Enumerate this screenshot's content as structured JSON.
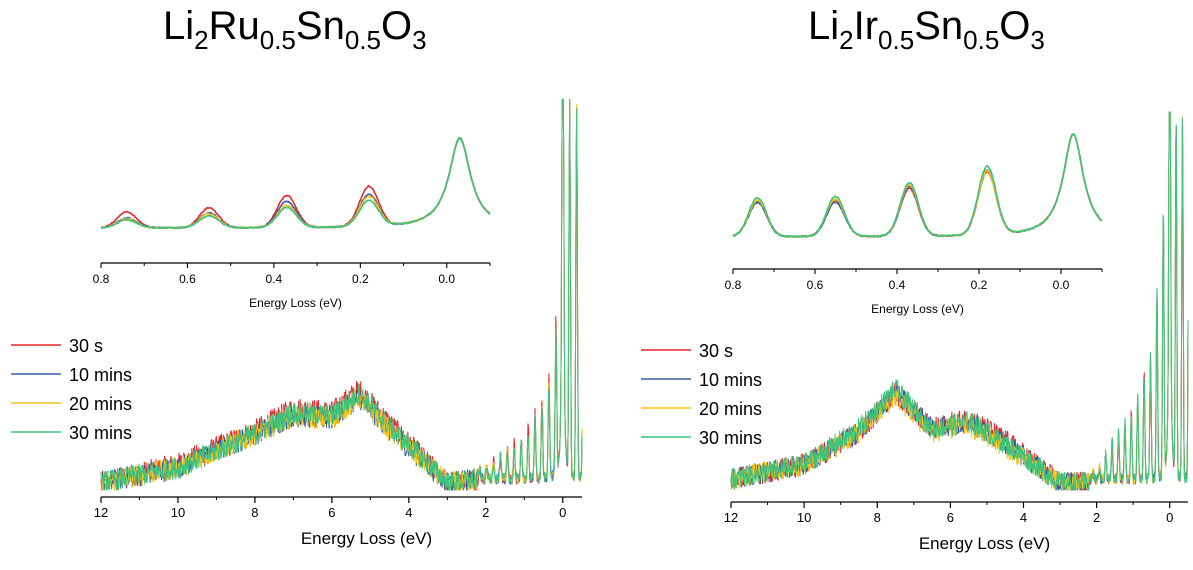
{
  "titles": {
    "left": {
      "base1": "Li",
      "s1": "2",
      "base2": "Ru",
      "s2": "0.5",
      "base3": "Sn",
      "s3": "0.5",
      "base4": "O",
      "s4": "3"
    },
    "right": {
      "base1": "Li",
      "s1": "2",
      "base2": "Ir",
      "s2": "0.5",
      "base3": "Sn",
      "s3": "0.5",
      "base4": "O",
      "s4": "3"
    }
  },
  "series_colors": {
    "30 s": "#e8262b",
    "10 mins": "#3b5ba8",
    "20 mins": "#f5c21a",
    "30 mins": "#3cc47c"
  },
  "legend_labels": [
    "30 s",
    "10 mins",
    "20 mins",
    "30 mins"
  ],
  "chart_data": [
    {
      "type": "line",
      "panel": "Li2Ru0.5Sn0.5O3 main",
      "xlabel": "Energy Loss (eV)",
      "xlim": [
        12,
        -0.5
      ],
      "x_ticks": [
        12,
        10,
        8,
        6,
        4,
        2,
        0
      ],
      "series": [
        {
          "name": "30 s",
          "x": [
            12,
            10,
            8,
            7,
            6,
            5.3,
            4.5,
            3,
            2,
            1.5,
            1,
            0.5,
            0.2,
            0
          ],
          "y": [
            0.02,
            0.07,
            0.16,
            0.22,
            0.21,
            0.27,
            0.18,
            0.02,
            0.03,
            0.08,
            0.12,
            0.22,
            0.35,
            1.0
          ]
        },
        {
          "name": "10 mins",
          "x": [
            12,
            10,
            8,
            7,
            6,
            5.3,
            4.5,
            3,
            2,
            1.5,
            1,
            0.5,
            0.2,
            0
          ],
          "y": [
            0.02,
            0.06,
            0.15,
            0.2,
            0.19,
            0.25,
            0.16,
            0.02,
            0.03,
            0.07,
            0.1,
            0.19,
            0.3,
            1.0
          ]
        },
        {
          "name": "20 mins",
          "x": [
            12,
            10,
            8,
            7,
            6,
            5.3,
            4.5,
            3,
            2,
            1.5,
            1,
            0.5,
            0.2,
            0
          ],
          "y": [
            0.02,
            0.06,
            0.15,
            0.2,
            0.19,
            0.25,
            0.16,
            0.02,
            0.03,
            0.07,
            0.1,
            0.19,
            0.3,
            1.0
          ]
        },
        {
          "name": "30 mins",
          "x": [
            12,
            10,
            8,
            7,
            6,
            5.3,
            4.5,
            3,
            2,
            1.5,
            1,
            0.5,
            0.2,
            0
          ],
          "y": [
            0.02,
            0.06,
            0.15,
            0.21,
            0.2,
            0.26,
            0.17,
            0.02,
            0.03,
            0.07,
            0.11,
            0.2,
            0.31,
            1.0
          ]
        }
      ]
    },
    {
      "type": "line",
      "panel": "Li2Ru0.5Sn0.5O3 inset",
      "xlabel": "Energy Loss (eV)",
      "xlim": [
        0.8,
        -0.1
      ],
      "x_ticks": [
        0.8,
        0.6,
        0.4,
        0.2,
        0.0
      ],
      "series": [
        {
          "name": "30 s",
          "peaks": [
            0.74,
            0.55,
            0.37,
            0.18
          ],
          "heights": [
            0.16,
            0.2,
            0.32,
            0.4
          ]
        },
        {
          "name": "10 mins",
          "peaks": [
            0.74,
            0.55,
            0.37,
            0.18
          ],
          "heights": [
            0.1,
            0.15,
            0.26,
            0.32
          ]
        },
        {
          "name": "20 mins",
          "peaks": [
            0.74,
            0.55,
            0.37,
            0.18
          ],
          "heights": [
            0.09,
            0.14,
            0.22,
            0.3
          ]
        },
        {
          "name": "30 mins",
          "peaks": [
            0.74,
            0.55,
            0.37,
            0.18
          ],
          "heights": [
            0.08,
            0.12,
            0.2,
            0.26
          ]
        }
      ]
    },
    {
      "type": "line",
      "panel": "Li2Ir0.5Sn0.5O3 main",
      "xlabel": "Energy Loss (eV)",
      "xlim": [
        12,
        -0.5
      ],
      "x_ticks": [
        12,
        10,
        8,
        6,
        4,
        2,
        0
      ],
      "series": [
        {
          "name": "30 s",
          "x": [
            12,
            10,
            8.5,
            7.5,
            6.5,
            5.5,
            4.5,
            3,
            2,
            1.5,
            1,
            0.5,
            0.2,
            0
          ],
          "y": [
            0.03,
            0.07,
            0.16,
            0.27,
            0.17,
            0.2,
            0.14,
            0.02,
            0.02,
            0.12,
            0.2,
            0.35,
            0.7,
            1.0
          ]
        },
        {
          "name": "10 mins",
          "x": [
            12,
            10,
            8.5,
            7.5,
            6.5,
            5.5,
            4.5,
            3,
            2,
            1.5,
            1,
            0.5,
            0.2,
            0
          ],
          "y": [
            0.03,
            0.07,
            0.16,
            0.27,
            0.17,
            0.19,
            0.13,
            0.02,
            0.02,
            0.11,
            0.19,
            0.34,
            0.68,
            1.0
          ]
        },
        {
          "name": "20 mins",
          "x": [
            12,
            10,
            8.5,
            7.5,
            6.5,
            5.5,
            4.5,
            3,
            2,
            1.5,
            1,
            0.5,
            0.2,
            0
          ],
          "y": [
            0.03,
            0.07,
            0.16,
            0.26,
            0.16,
            0.18,
            0.12,
            0.02,
            0.02,
            0.11,
            0.19,
            0.33,
            0.66,
            1.0
          ]
        },
        {
          "name": "30 mins",
          "x": [
            12,
            10,
            8.5,
            7.5,
            6.5,
            5.5,
            4.5,
            3,
            2,
            1.5,
            1,
            0.5,
            0.2,
            0
          ],
          "y": [
            0.03,
            0.07,
            0.17,
            0.28,
            0.17,
            0.19,
            0.13,
            0.02,
            0.02,
            0.12,
            0.2,
            0.35,
            0.7,
            1.0
          ]
        }
      ]
    },
    {
      "type": "line",
      "panel": "Li2Ir0.5Sn0.5O3 inset",
      "xlabel": "Energy Loss (eV)",
      "xlim": [
        0.8,
        -0.1
      ],
      "x_ticks": [
        0.8,
        0.6,
        0.4,
        0.2,
        0.0
      ],
      "series": [
        {
          "name": "30 s",
          "peaks": [
            0.74,
            0.55,
            0.37,
            0.18
          ],
          "heights": [
            0.3,
            0.32,
            0.42,
            0.55
          ]
        },
        {
          "name": "10 mins",
          "peaks": [
            0.74,
            0.55,
            0.37,
            0.18
          ],
          "heights": [
            0.3,
            0.3,
            0.44,
            0.57
          ]
        },
        {
          "name": "20 mins",
          "peaks": [
            0.74,
            0.55,
            0.37,
            0.18
          ],
          "heights": [
            0.32,
            0.33,
            0.45,
            0.56
          ]
        },
        {
          "name": "30 mins",
          "peaks": [
            0.74,
            0.55,
            0.37,
            0.18
          ],
          "heights": [
            0.34,
            0.35,
            0.47,
            0.6
          ]
        }
      ]
    }
  ]
}
